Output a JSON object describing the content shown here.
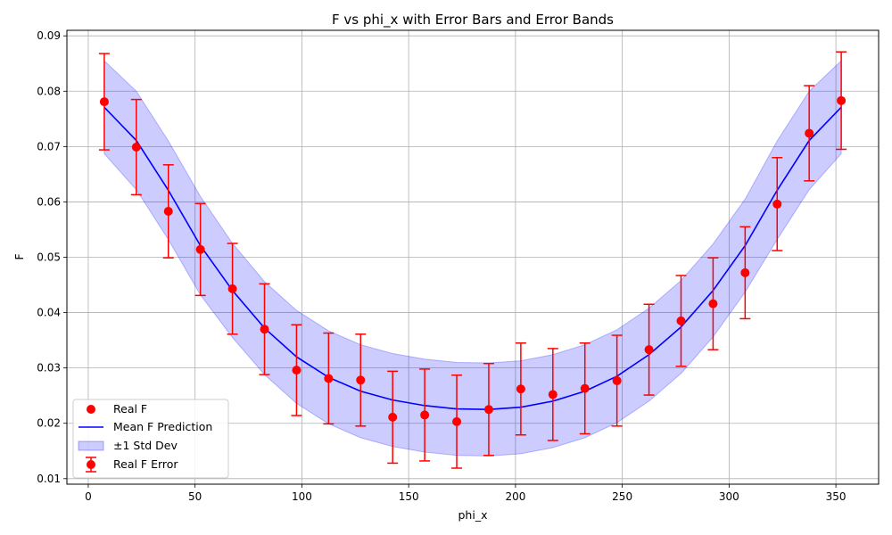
{
  "chart_data": {
    "type": "line",
    "title": "F vs phi_x with Error Bars and Error Bands",
    "xlabel": "phi_x",
    "ylabel": "F",
    "xlim": [
      -10,
      370
    ],
    "ylim": [
      0.009,
      0.091
    ],
    "xticks": [
      0,
      50,
      100,
      150,
      200,
      250,
      300,
      350
    ],
    "yticks": [
      0.01,
      0.02,
      0.03,
      0.04,
      0.05,
      0.06,
      0.07,
      0.08,
      0.09
    ],
    "xtick_labels": [
      "0",
      "50",
      "100",
      "150",
      "200",
      "250",
      "300",
      "350"
    ],
    "ytick_labels": [
      "0.01",
      "0.02",
      "0.03",
      "0.04",
      "0.05",
      "0.06",
      "0.07",
      "0.08",
      "0.09"
    ],
    "grid": true,
    "legend_position": "lower-left",
    "x": [
      7.5,
      22.5,
      37.5,
      52.5,
      67.5,
      82.5,
      97.5,
      112.5,
      127.5,
      142.5,
      157.5,
      172.5,
      187.5,
      202.5,
      217.5,
      232.5,
      247.5,
      262.5,
      277.5,
      292.5,
      307.5,
      322.5,
      337.5,
      352.5
    ],
    "series": [
      {
        "name": "Real F",
        "kind": "scatter",
        "color": "#ff0000",
        "values": [
          0.0781,
          0.0699,
          0.0583,
          0.0514,
          0.0443,
          0.037,
          0.0296,
          0.0281,
          0.0278,
          0.0211,
          0.0215,
          0.0203,
          0.0225,
          0.0262,
          0.0252,
          0.0263,
          0.0277,
          0.0333,
          0.0385,
          0.0416,
          0.0472,
          0.0596,
          0.0724,
          0.0783
        ]
      },
      {
        "name": "Real F Error",
        "kind": "errorbar",
        "color": "#ff0000",
        "errors": [
          0.0087,
          0.0086,
          0.0084,
          0.0083,
          0.0082,
          0.0082,
          0.0082,
          0.0082,
          0.0083,
          0.0083,
          0.0083,
          0.0084,
          0.0083,
          0.0083,
          0.0083,
          0.0082,
          0.0082,
          0.0082,
          0.0082,
          0.0083,
          0.0083,
          0.0084,
          0.0086,
          0.0088
        ]
      },
      {
        "name": "Mean F Prediction",
        "kind": "line",
        "color": "#0000ff",
        "values": [
          0.0771,
          0.0711,
          0.0621,
          0.0521,
          0.044,
          0.0372,
          0.032,
          0.0283,
          0.0258,
          0.0242,
          0.0232,
          0.0226,
          0.0225,
          0.0229,
          0.024,
          0.0258,
          0.0285,
          0.0324,
          0.0374,
          0.044,
          0.0521,
          0.0621,
          0.0711,
          0.0771
        ]
      },
      {
        "name": "±1 Std Dev",
        "kind": "band",
        "color": "#0000ff",
        "upper": [
          0.0855,
          0.08,
          0.071,
          0.061,
          0.0525,
          0.0456,
          0.0404,
          0.0367,
          0.0342,
          0.0326,
          0.0316,
          0.031,
          0.0309,
          0.0313,
          0.0324,
          0.0342,
          0.0369,
          0.0408,
          0.0458,
          0.0524,
          0.0605,
          0.071,
          0.08,
          0.0855
        ],
        "lower": [
          0.0687,
          0.0622,
          0.0532,
          0.0432,
          0.0355,
          0.0288,
          0.0236,
          0.0199,
          0.0174,
          0.0158,
          0.0148,
          0.0142,
          0.0141,
          0.0145,
          0.0156,
          0.0174,
          0.0201,
          0.024,
          0.029,
          0.0356,
          0.0437,
          0.0532,
          0.0622,
          0.0687
        ]
      }
    ]
  }
}
